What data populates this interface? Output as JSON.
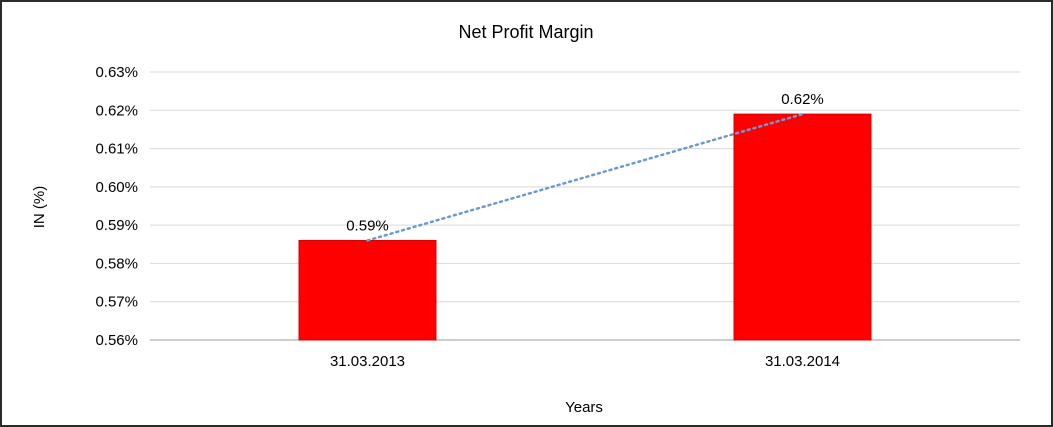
{
  "chart_data": {
    "type": "bar",
    "title": "Net Profit Margin",
    "xlabel": "Years",
    "ylabel": "IN (%)",
    "categories": [
      "31.03.2013",
      "31.03.2014"
    ],
    "values": [
      0.586,
      0.619
    ],
    "data_labels": [
      "0.59%",
      "0.62%"
    ],
    "ylim": [
      0.56,
      0.63
    ],
    "yticks": [
      {
        "value": 0.56,
        "label": "0.56%"
      },
      {
        "value": 0.57,
        "label": "0.57%"
      },
      {
        "value": 0.58,
        "label": "0.58%"
      },
      {
        "value": 0.59,
        "label": "0.59%"
      },
      {
        "value": 0.6,
        "label": "0.60%"
      },
      {
        "value": 0.61,
        "label": "0.61%"
      },
      {
        "value": 0.62,
        "label": "0.62%"
      },
      {
        "value": 0.63,
        "label": "0.63%"
      }
    ],
    "grid": true,
    "legend": "none",
    "has_trendline": true,
    "bar_color": "#ff0000",
    "bar_border_color": "#d40000",
    "trendline_color": "#6b9bd2",
    "gridline_color": "#d9d9d9",
    "axis_line_color": "#9b9b9b"
  }
}
